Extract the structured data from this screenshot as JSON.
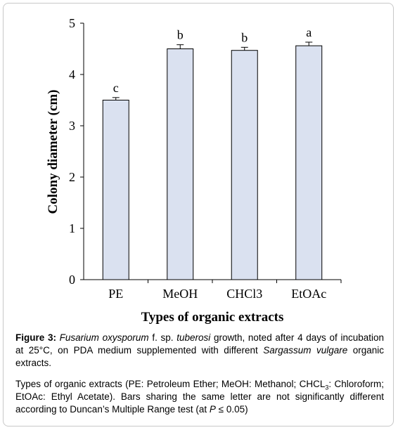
{
  "chart_data": {
    "type": "bar",
    "categories": [
      "PE",
      "MeOH",
      "CHCl3",
      "EtOAc"
    ],
    "values": [
      3.5,
      4.5,
      4.47,
      4.56
    ],
    "errors": [
      0.05,
      0.08,
      0.06,
      0.07
    ],
    "significance_letters": [
      "c",
      "b",
      "b",
      "a"
    ],
    "xlabel": "Types of organic extracts",
    "ylabel": "Colony diameter (cm)",
    "ylim": [
      0,
      5
    ],
    "yticks": [
      "0",
      "1",
      "2",
      "3",
      "4",
      "5"
    ],
    "bar_fill": "#dae1f0",
    "bar_stroke": "#000000",
    "grid": false
  },
  "caption": {
    "figure_label": "Figure 3:",
    "species_italic": "Fusarium oxysporum",
    "fsp": " f. sp. ",
    "tuberosi_italic": "tuberosi",
    "text_1": " growth, noted after 4 days of incubation at 25°C, on PDA medium supplemented with different ",
    "sargassum_italic": "Sargassum vulgare",
    "text_2": " organic extracts.",
    "note_1": "Types of organic extracts (PE: Petroleum Ether; MeOH: Methanol; CHCL",
    "note_sub": "3",
    "note_2": ": Chloroform; EtOAc: Ethyl Acetate). Bars sharing the same letter are not significantly different according to Duncan’s Multiple Range test (at ",
    "note_p": "P",
    "note_3": " ≤ 0.05)"
  }
}
